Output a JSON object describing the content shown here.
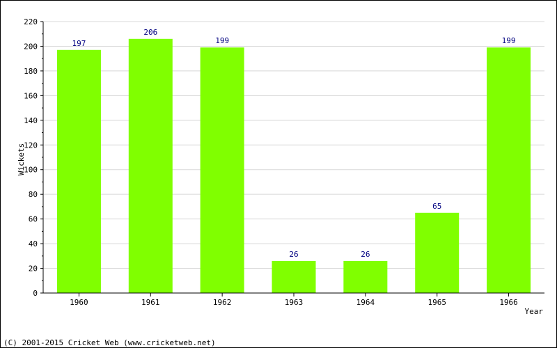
{
  "chart_data": {
    "type": "bar",
    "categories": [
      "1960",
      "1961",
      "1962",
      "1963",
      "1964",
      "1965",
      "1966"
    ],
    "values": [
      197,
      206,
      199,
      26,
      26,
      65,
      199
    ],
    "data_labels": [
      "197",
      "206",
      "199",
      "26",
      "26",
      "65",
      "199"
    ],
    "xlabel": "Year",
    "ylabel": "Wickets",
    "ylim": [
      0,
      220
    ],
    "yticks": [
      0,
      20,
      40,
      60,
      80,
      100,
      120,
      140,
      160,
      180,
      200,
      220
    ],
    "grid": true,
    "legend": "none"
  },
  "footer": {
    "copyright": "(C) 2001-2015 Cricket Web (www.cricketweb.net)"
  },
  "colors": {
    "bar": "#80ff00",
    "data_label": "#000080",
    "grid": "#d8d8d8",
    "axis": "#000000",
    "background": "#ffffff"
  }
}
